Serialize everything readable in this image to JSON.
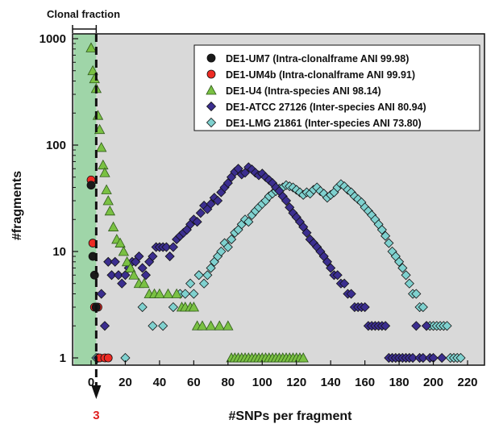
{
  "chart_data": {
    "type": "scatter",
    "xlabel": "#SNPs per fragment",
    "ylabel": "#fragments",
    "xlim": [
      -10,
      220
    ],
    "ylim": [
      0.85,
      1000
    ],
    "yscale": "log",
    "x_ticks": [
      0,
      20,
      40,
      60,
      80,
      100,
      120,
      140,
      160,
      180,
      200,
      220
    ],
    "x_tick_labels": [
      "0",
      "20",
      "40",
      "60",
      "80",
      "100",
      "120",
      "140",
      "160",
      "180",
      "200",
      "220"
    ],
    "y_ticks": [
      1,
      10,
      100,
      1000
    ],
    "y_tick_labels": [
      "1",
      "10",
      "100",
      "1000"
    ],
    "grid": false,
    "legend_position": "top-right",
    "plot_background": "#d9d9d9",
    "clonal_region": {
      "label": "Clonal fraction",
      "x_range": [
        -10,
        3
      ],
      "color": "#9fd5a8"
    },
    "cutoff": {
      "x": 3,
      "label": "3",
      "label_color": "#e02020"
    },
    "series": [
      {
        "name": "DE1-UM7 (Intra-clonalframe ANI 99.98)",
        "marker": "circle",
        "color": "#1a1a1a",
        "points": [
          [
            0,
            42
          ],
          [
            1,
            9
          ],
          [
            2,
            6
          ],
          [
            3,
            3
          ]
        ]
      },
      {
        "name": "DE1-UM4b (Intra-clonalframe ANI 99.91)",
        "marker": "circle",
        "color": "#ee2b24",
        "points": [
          [
            0,
            47
          ],
          [
            1,
            12
          ],
          [
            2,
            3
          ],
          [
            3,
            3
          ],
          [
            4,
            3
          ],
          [
            5,
            1
          ],
          [
            8,
            1
          ],
          [
            10,
            1
          ]
        ]
      },
      {
        "name": "DE1-U4 (Intra-species ANI 98.14)",
        "marker": "triangle",
        "color": "#7ac143",
        "points": [
          [
            0,
            820
          ],
          [
            1,
            500
          ],
          [
            2,
            420
          ],
          [
            3,
            340
          ],
          [
            4,
            190
          ],
          [
            5,
            140
          ],
          [
            6,
            95
          ],
          [
            7,
            65
          ],
          [
            8,
            55
          ],
          [
            9,
            38
          ],
          [
            10,
            30
          ],
          [
            11,
            24
          ],
          [
            13,
            17
          ],
          [
            15,
            13
          ],
          [
            17,
            12
          ],
          [
            19,
            10
          ],
          [
            21,
            8
          ],
          [
            23,
            7
          ],
          [
            25,
            6
          ],
          [
            28,
            5
          ],
          [
            31,
            5
          ],
          [
            34,
            4
          ],
          [
            37,
            4
          ],
          [
            40,
            4
          ],
          [
            45,
            4
          ],
          [
            50,
            4
          ],
          [
            53,
            3
          ],
          [
            55,
            3
          ],
          [
            58,
            3
          ],
          [
            60,
            3
          ],
          [
            62,
            2
          ],
          [
            65,
            2
          ],
          [
            70,
            2
          ],
          [
            75,
            2
          ],
          [
            80,
            2
          ],
          [
            82,
            1
          ],
          [
            84,
            1
          ],
          [
            86,
            1
          ],
          [
            88,
            1
          ],
          [
            90,
            1
          ],
          [
            92,
            1
          ],
          [
            94,
            1
          ],
          [
            96,
            1
          ],
          [
            98,
            1
          ],
          [
            100,
            1
          ],
          [
            102,
            1
          ],
          [
            104,
            1
          ],
          [
            106,
            1
          ],
          [
            108,
            1
          ],
          [
            110,
            1
          ],
          [
            112,
            1
          ],
          [
            114,
            1
          ],
          [
            116,
            1
          ],
          [
            118,
            1
          ],
          [
            120,
            1
          ],
          [
            122,
            1
          ],
          [
            124,
            1
          ]
        ]
      },
      {
        "name": "DE1-ATCC 27126 (Inter-species ANI 80.94)",
        "marker": "diamond",
        "color": "#3b2e8f",
        "points": [
          [
            4,
            1
          ],
          [
            6,
            4
          ],
          [
            8,
            2
          ],
          [
            10,
            8
          ],
          [
            12,
            6
          ],
          [
            14,
            8
          ],
          [
            16,
            6
          ],
          [
            18,
            5
          ],
          [
            20,
            6
          ],
          [
            22,
            7
          ],
          [
            24,
            8
          ],
          [
            26,
            8
          ],
          [
            28,
            9
          ],
          [
            30,
            7
          ],
          [
            32,
            6
          ],
          [
            34,
            8
          ],
          [
            36,
            9
          ],
          [
            38,
            11
          ],
          [
            40,
            11
          ],
          [
            42,
            11
          ],
          [
            44,
            11
          ],
          [
            46,
            9
          ],
          [
            48,
            11
          ],
          [
            50,
            13
          ],
          [
            52,
            14
          ],
          [
            54,
            15
          ],
          [
            56,
            16
          ],
          [
            58,
            18
          ],
          [
            60,
            20
          ],
          [
            62,
            19
          ],
          [
            64,
            23
          ],
          [
            66,
            27
          ],
          [
            68,
            25
          ],
          [
            70,
            28
          ],
          [
            72,
            32
          ],
          [
            74,
            30
          ],
          [
            76,
            36
          ],
          [
            78,
            40
          ],
          [
            80,
            44
          ],
          [
            82,
            50
          ],
          [
            84,
            56
          ],
          [
            86,
            60
          ],
          [
            88,
            53
          ],
          [
            90,
            55
          ],
          [
            92,
            62
          ],
          [
            94,
            59
          ],
          [
            96,
            55
          ],
          [
            98,
            52
          ],
          [
            100,
            54
          ],
          [
            102,
            50
          ],
          [
            104,
            47
          ],
          [
            106,
            44
          ],
          [
            108,
            40
          ],
          [
            110,
            37
          ],
          [
            112,
            33
          ],
          [
            114,
            30
          ],
          [
            116,
            26
          ],
          [
            118,
            23
          ],
          [
            120,
            21
          ],
          [
            122,
            19
          ],
          [
            124,
            17
          ],
          [
            126,
            15
          ],
          [
            128,
            13
          ],
          [
            130,
            12
          ],
          [
            132,
            11
          ],
          [
            134,
            10
          ],
          [
            136,
            9
          ],
          [
            138,
            8
          ],
          [
            140,
            7
          ],
          [
            142,
            6
          ],
          [
            144,
            6
          ],
          [
            146,
            5
          ],
          [
            148,
            5
          ],
          [
            150,
            4
          ],
          [
            152,
            4
          ],
          [
            154,
            3
          ],
          [
            156,
            3
          ],
          [
            158,
            3
          ],
          [
            160,
            3
          ],
          [
            162,
            2
          ],
          [
            164,
            2
          ],
          [
            166,
            2
          ],
          [
            168,
            2
          ],
          [
            170,
            2
          ],
          [
            172,
            2
          ],
          [
            174,
            1
          ],
          [
            176,
            1
          ],
          [
            178,
            1
          ],
          [
            180,
            1
          ],
          [
            182,
            1
          ],
          [
            184,
            1
          ],
          [
            186,
            1
          ],
          [
            188,
            1
          ],
          [
            190,
            2
          ],
          [
            192,
            1
          ],
          [
            194,
            1
          ],
          [
            196,
            2
          ],
          [
            198,
            1
          ],
          [
            200,
            1
          ],
          [
            205,
            1
          ]
        ]
      },
      {
        "name": "DE1-LMG 21861 (Inter-species ANI 73.80)",
        "marker": "diamond",
        "color": "#7fd1cf",
        "points": [
          [
            3,
            1
          ],
          [
            20,
            1
          ],
          [
            30,
            3
          ],
          [
            36,
            2
          ],
          [
            42,
            2
          ],
          [
            48,
            3
          ],
          [
            52,
            4
          ],
          [
            55,
            4
          ],
          [
            58,
            5
          ],
          [
            60,
            4
          ],
          [
            63,
            6
          ],
          [
            66,
            5
          ],
          [
            68,
            6
          ],
          [
            70,
            7
          ],
          [
            72,
            8
          ],
          [
            74,
            9
          ],
          [
            76,
            10
          ],
          [
            78,
            12
          ],
          [
            80,
            11
          ],
          [
            82,
            13
          ],
          [
            84,
            15
          ],
          [
            86,
            16
          ],
          [
            88,
            18
          ],
          [
            90,
            20
          ],
          [
            92,
            19
          ],
          [
            94,
            22
          ],
          [
            96,
            24
          ],
          [
            98,
            26
          ],
          [
            100,
            28
          ],
          [
            102,
            30
          ],
          [
            104,
            33
          ],
          [
            106,
            35
          ],
          [
            108,
            37
          ],
          [
            110,
            39
          ],
          [
            112,
            40
          ],
          [
            114,
            42
          ],
          [
            116,
            41
          ],
          [
            118,
            40
          ],
          [
            120,
            38
          ],
          [
            122,
            36
          ],
          [
            124,
            34
          ],
          [
            126,
            36
          ],
          [
            128,
            35
          ],
          [
            130,
            38
          ],
          [
            132,
            40
          ],
          [
            134,
            37
          ],
          [
            136,
            35
          ],
          [
            138,
            32
          ],
          [
            140,
            34
          ],
          [
            142,
            36
          ],
          [
            144,
            40
          ],
          [
            146,
            43
          ],
          [
            148,
            41
          ],
          [
            150,
            38
          ],
          [
            152,
            36
          ],
          [
            154,
            33
          ],
          [
            156,
            31
          ],
          [
            158,
            29
          ],
          [
            160,
            26
          ],
          [
            162,
            24
          ],
          [
            164,
            22
          ],
          [
            166,
            20
          ],
          [
            168,
            18
          ],
          [
            170,
            16
          ],
          [
            172,
            14
          ],
          [
            174,
            12
          ],
          [
            176,
            10
          ],
          [
            178,
            9
          ],
          [
            180,
            8
          ],
          [
            182,
            7
          ],
          [
            184,
            6
          ],
          [
            186,
            5
          ],
          [
            188,
            4
          ],
          [
            190,
            4
          ],
          [
            192,
            3
          ],
          [
            194,
            3
          ],
          [
            196,
            2
          ],
          [
            198,
            2
          ],
          [
            200,
            2
          ],
          [
            202,
            2
          ],
          [
            204,
            2
          ],
          [
            206,
            2
          ],
          [
            208,
            2
          ],
          [
            210,
            1
          ],
          [
            212,
            1
          ],
          [
            214,
            1
          ],
          [
            216,
            1
          ]
        ]
      }
    ]
  }
}
